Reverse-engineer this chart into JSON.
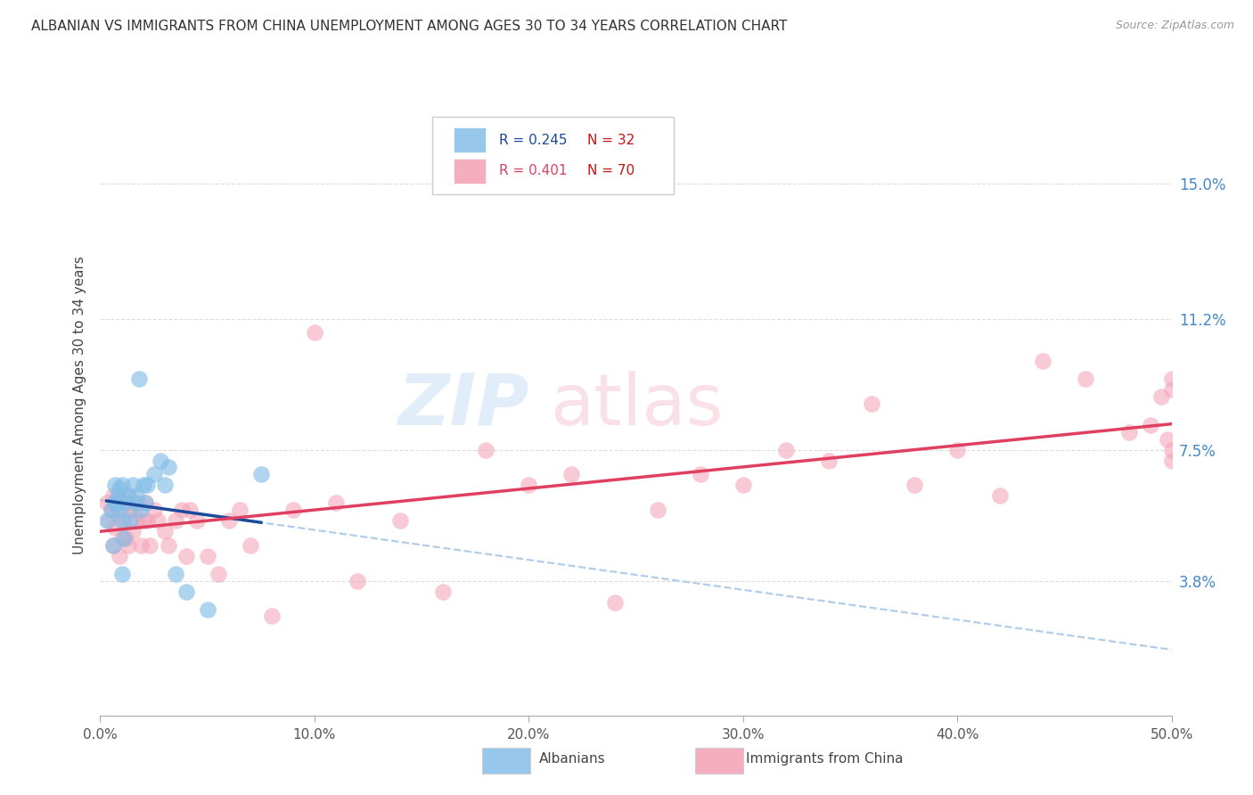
{
  "title": "ALBANIAN VS IMMIGRANTS FROM CHINA UNEMPLOYMENT AMONG AGES 30 TO 34 YEARS CORRELATION CHART",
  "source": "Source: ZipAtlas.com",
  "ylabel": "Unemployment Among Ages 30 to 34 years",
  "xlim": [
    0.0,
    0.5
  ],
  "ylim": [
    0.0,
    0.175
  ],
  "ytick_labels": [
    "3.8%",
    "7.5%",
    "11.2%",
    "15.0%"
  ],
  "ytick_values": [
    0.038,
    0.075,
    0.112,
    0.15
  ],
  "xtick_labels": [
    "0.0%",
    "10.0%",
    "20.0%",
    "30.0%",
    "40.0%",
    "50.0%"
  ],
  "xtick_values": [
    0.0,
    0.1,
    0.2,
    0.3,
    0.4,
    0.5
  ],
  "legend1_R": "0.245",
  "legend1_N": "32",
  "legend2_R": "0.401",
  "legend2_N": "70",
  "color_albanian": "#85BEE8",
  "color_china": "#F4A0B5",
  "color_line_albanian": "#1A4A9A",
  "color_line_china": "#E04060",
  "color_dashed": "#A8C8E8",
  "albanians_x": [
    0.003,
    0.005,
    0.006,
    0.007,
    0.007,
    0.008,
    0.008,
    0.009,
    0.009,
    0.01,
    0.01,
    0.01,
    0.011,
    0.012,
    0.013,
    0.014,
    0.015,
    0.016,
    0.017,
    0.018,
    0.019,
    0.02,
    0.021,
    0.022,
    0.025,
    0.028,
    0.03,
    0.032,
    0.035,
    0.04,
    0.05,
    0.075
  ],
  "albanians_y": [
    0.055,
    0.058,
    0.048,
    0.06,
    0.065,
    0.06,
    0.062,
    0.058,
    0.064,
    0.04,
    0.055,
    0.065,
    0.05,
    0.06,
    0.062,
    0.055,
    0.065,
    0.06,
    0.062,
    0.095,
    0.058,
    0.065,
    0.06,
    0.065,
    0.068,
    0.072,
    0.065,
    0.07,
    0.04,
    0.035,
    0.03,
    0.068
  ],
  "china_x": [
    0.003,
    0.004,
    0.005,
    0.006,
    0.006,
    0.007,
    0.007,
    0.008,
    0.009,
    0.009,
    0.01,
    0.01,
    0.011,
    0.012,
    0.012,
    0.013,
    0.014,
    0.015,
    0.016,
    0.017,
    0.018,
    0.019,
    0.02,
    0.021,
    0.022,
    0.023,
    0.025,
    0.027,
    0.03,
    0.032,
    0.035,
    0.038,
    0.04,
    0.042,
    0.045,
    0.05,
    0.055,
    0.06,
    0.065,
    0.07,
    0.08,
    0.09,
    0.1,
    0.11,
    0.12,
    0.14,
    0.16,
    0.18,
    0.2,
    0.22,
    0.24,
    0.26,
    0.28,
    0.3,
    0.32,
    0.34,
    0.36,
    0.38,
    0.4,
    0.42,
    0.44,
    0.46,
    0.48,
    0.49,
    0.495,
    0.498,
    0.5,
    0.5,
    0.5,
    0.5
  ],
  "china_y": [
    0.06,
    0.055,
    0.058,
    0.048,
    0.062,
    0.053,
    0.06,
    0.057,
    0.045,
    0.062,
    0.05,
    0.06,
    0.055,
    0.05,
    0.062,
    0.048,
    0.058,
    0.052,
    0.058,
    0.055,
    0.06,
    0.048,
    0.055,
    0.06,
    0.055,
    0.048,
    0.058,
    0.055,
    0.052,
    0.048,
    0.055,
    0.058,
    0.045,
    0.058,
    0.055,
    0.045,
    0.04,
    0.055,
    0.058,
    0.048,
    0.028,
    0.058,
    0.108,
    0.06,
    0.038,
    0.055,
    0.035,
    0.075,
    0.065,
    0.068,
    0.032,
    0.058,
    0.068,
    0.065,
    0.075,
    0.072,
    0.088,
    0.065,
    0.075,
    0.062,
    0.1,
    0.095,
    0.08,
    0.082,
    0.09,
    0.078,
    0.092,
    0.072,
    0.075,
    0.095
  ]
}
